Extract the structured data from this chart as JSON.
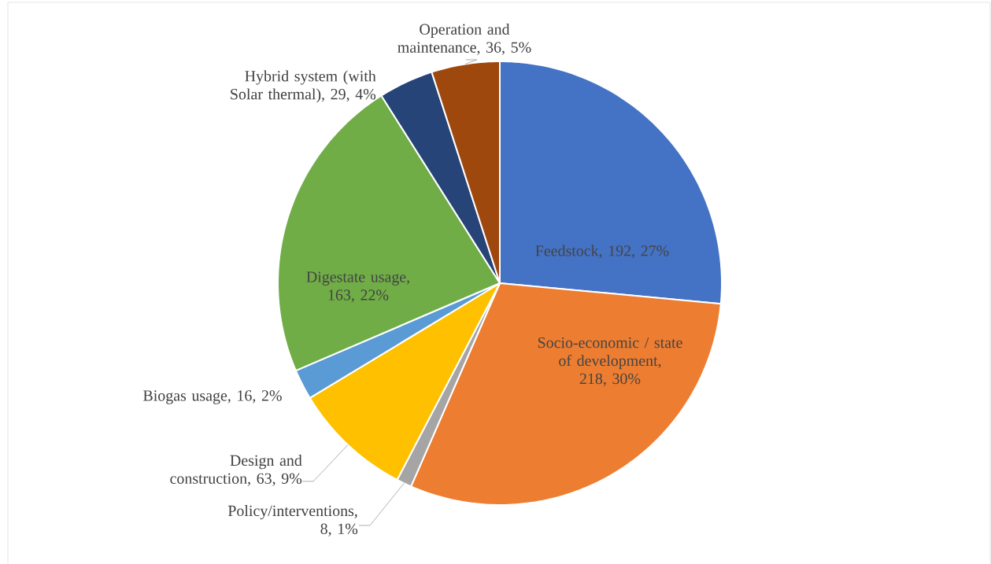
{
  "chart_data": {
    "type": "pie",
    "categories": [
      "Feedstock",
      "Socio-economic / state of development",
      "Policy/interventions",
      "Design and construction",
      "Biogas usage",
      "Digestate usage",
      "Hybrid system (with Solar thermal)",
      "Operation and maintenance"
    ],
    "values": [
      192,
      218,
      8,
      63,
      16,
      163,
      29,
      36
    ],
    "value_labels": [
      ", 192, 27%",
      ", 218, 30%",
      ", 8, 1%",
      ", 63, 9%",
      ", 16, 2%",
      ", 163, 22%",
      ", 29, 4%",
      ", 36, 5%"
    ],
    "colors": [
      "#4472c4",
      "#ed7d31",
      "#a5a5a5",
      "#ffc000",
      "#5b9bd5",
      "#70ad47",
      "#264478",
      "#9e480e"
    ]
  }
}
